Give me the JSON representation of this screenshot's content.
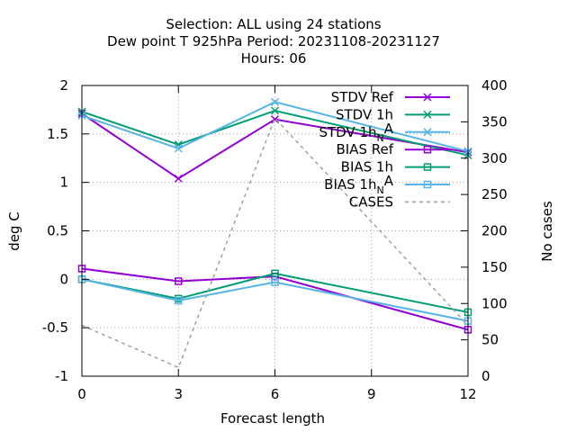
{
  "chart_data": {
    "type": "line",
    "title_lines": [
      "Selection: ALL using    24 stations",
      "Dew point T 925hPa   Period: 20231108-20231127",
      "Hours:  06"
    ],
    "xlabel": "Forecast length",
    "ylabel_left": "deg C",
    "ylabel_right": "No cases",
    "x": [
      0,
      3,
      6,
      12
    ],
    "xlim": [
      0,
      12
    ],
    "xticks": [
      "0",
      "3",
      "6",
      "9",
      "12"
    ],
    "xtick_values": [
      0,
      3,
      6,
      9,
      12
    ],
    "ylim_left": [
      -1,
      2
    ],
    "yticks_left": [
      "-1",
      "-0.5",
      "0",
      "0.5",
      "1",
      "1.5",
      "2"
    ],
    "ytick_values_left": [
      -1,
      -0.5,
      0,
      0.5,
      1,
      1.5,
      2
    ],
    "ylim_right": [
      0,
      400
    ],
    "yticks_right": [
      "0",
      "50",
      "100",
      "150",
      "200",
      "250",
      "300",
      "350",
      "400"
    ],
    "ytick_values_right": [
      0,
      50,
      100,
      150,
      200,
      250,
      300,
      350,
      400
    ],
    "grid": true,
    "legend_position": "top-right",
    "series": [
      {
        "name": "STDV Ref",
        "legend_main": "STDV Ref",
        "legend_sub": "",
        "legend_tail": "",
        "axis": "left",
        "marker": "x",
        "color": "#9400d3",
        "dash": false,
        "values": [
          1.71,
          1.04,
          1.65,
          1.31
        ]
      },
      {
        "name": "STDV 1h",
        "legend_main": "STDV 1h",
        "legend_sub": "",
        "legend_tail": "",
        "axis": "left",
        "marker": "x",
        "color": "#009e73",
        "dash": false,
        "values": [
          1.73,
          1.39,
          1.74,
          1.28
        ]
      },
      {
        "name": "STDV 1h_NA",
        "legend_main": "STDV 1h",
        "legend_sub": "N",
        "legend_tail": "A",
        "axis": "left",
        "marker": "x",
        "color": "#56b4e9",
        "dash": false,
        "values": [
          1.69,
          1.35,
          1.83,
          1.32
        ]
      },
      {
        "name": "BIAS Ref",
        "legend_main": "BIAS Ref",
        "legend_sub": "",
        "legend_tail": "",
        "axis": "left",
        "marker": "square",
        "color": "#9400d3",
        "dash": false,
        "values": [
          0.11,
          -0.02,
          0.03,
          -0.52
        ]
      },
      {
        "name": "BIAS 1h",
        "legend_main": "BIAS 1h",
        "legend_sub": "",
        "legend_tail": "",
        "axis": "left",
        "marker": "square",
        "color": "#009e73",
        "dash": false,
        "values": [
          0.0,
          -0.2,
          0.06,
          -0.34
        ]
      },
      {
        "name": "BIAS 1h_NA",
        "legend_main": "BIAS 1h",
        "legend_sub": "N",
        "legend_tail": "A",
        "axis": "left",
        "marker": "square",
        "color": "#56b4e9",
        "dash": false,
        "values": [
          0.0,
          -0.22,
          -0.03,
          -0.43
        ]
      },
      {
        "name": "CASES",
        "legend_main": "CASES",
        "legend_sub": "",
        "legend_tail": "",
        "axis": "right",
        "marker": "none",
        "color": "#a0a0a0",
        "dash": true,
        "values": [
          70,
          12,
          355,
          70
        ]
      }
    ]
  }
}
